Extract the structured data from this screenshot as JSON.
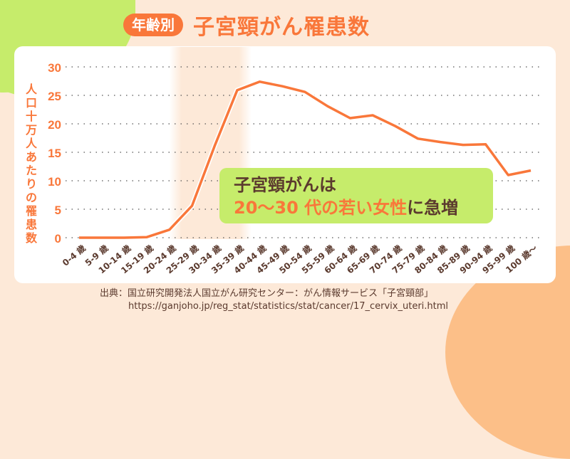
{
  "header": {
    "badge": "年齢別",
    "title": "子宮頸がん罹患数"
  },
  "y_axis_label": "人口十万人あたりの罹患数",
  "callout": {
    "line1": "子宮頸がんは",
    "line2_highlight1": "20〜30 代の若い女性",
    "line2_highlight2": "",
    "line2_suffix": "に急増"
  },
  "source": {
    "line1": "出典：国立研究開発法人国立がん研究センター：がん情報サービス「子宮頸部」",
    "line2": "https://ganjoho.jp/reg_stat/statistics/stat/cancer/17_cervix_uteri.html"
  },
  "colors": {
    "accent": "#f9773a",
    "green": "#c6ec6b",
    "text": "#5b3a2e",
    "band": "#fde9d8"
  },
  "chart_data": {
    "type": "line",
    "title": "年齢別 子宮頸がん罹患数",
    "xlabel": "",
    "ylabel": "人口十万人あたりの罹患数",
    "ylim": [
      0,
      30
    ],
    "yticks": [
      0,
      5,
      10,
      15,
      20,
      25,
      30
    ],
    "grid": true,
    "highlight_range": [
      "25-29 歳",
      "35-39 歳"
    ],
    "categories": [
      "0-4 歳",
      "5-9 歳",
      "10-14 歳",
      "15-19 歳",
      "20-24 歳",
      "25-29 歳",
      "30-34 歳",
      "35-39 歳",
      "40-44 歳",
      "45-49 歳",
      "50-54 歳",
      "55-59 歳",
      "60-64 歳",
      "65-69 歳",
      "70-74 歳",
      "75-79 歳",
      "80-84 歳",
      "85-89 歳",
      "90-94 歳",
      "95-99 歳",
      "100 歳〜"
    ],
    "series": [
      {
        "name": "子宮頸がん罹患数",
        "values": [
          0,
          0,
          0,
          0.1,
          1.4,
          5.6,
          16.1,
          25.9,
          27.4,
          26.6,
          25.6,
          23.1,
          21.0,
          21.5,
          19.6,
          17.4,
          16.8,
          16.3,
          16.4,
          11.0,
          11.8
        ]
      }
    ]
  }
}
